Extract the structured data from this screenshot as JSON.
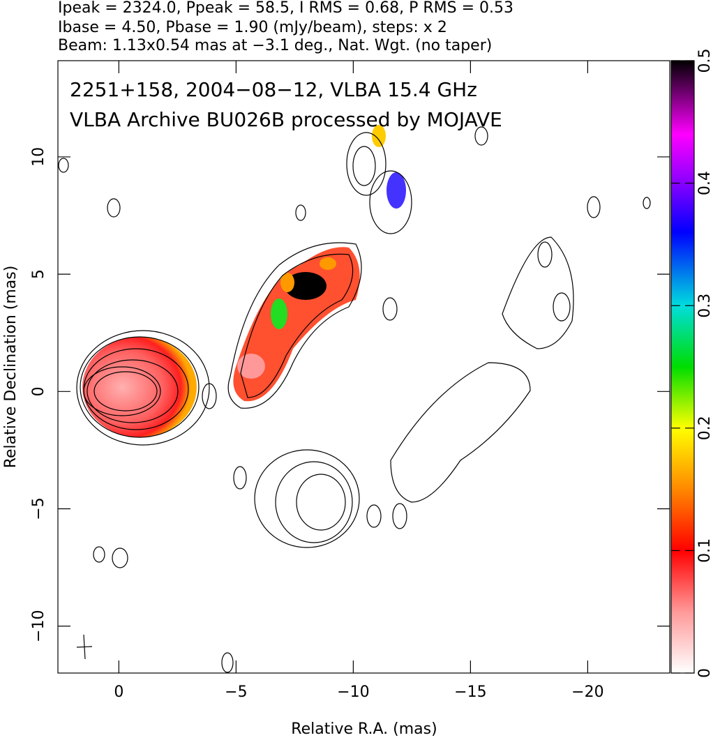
{
  "chart_data": {
    "type": "contour-image",
    "title_lines": [
      "Ipeak = 2324.0, Ppeak = 58.5, I RMS = 0.68, P RMS = 0.53",
      "Ibase = 4.50, Pbase = 1.90 (mJy/beam), steps: x 2",
      "Beam: 1.13x0.54 mas at −3.1 deg., Nat. Wgt. (no taper)"
    ],
    "annotations": [
      "2251+158, 2004−08−12, VLBA 15.4 GHz",
      "VLBA Archive BU026B processed by MOJAVE"
    ],
    "xlabel": "Relative R.A. (mas)",
    "ylabel": "Relative Declination (mas)",
    "xlim": [
      2.6,
      -23.5
    ],
    "xticks": [
      0,
      {
        "value": -5,
        "label": "−5"
      },
      {
        "value": -10,
        "label": "−10"
      },
      {
        "value": -15,
        "label": "−15"
      },
      {
        "value": -20,
        "label": "−20"
      }
    ],
    "ylim": [
      -12.0,
      14.1
    ],
    "yticks": [
      {
        "value": -10,
        "label": "−10"
      },
      {
        "value": -5,
        "label": "−5"
      },
      0,
      5,
      10
    ],
    "colorbar": {
      "lim": [
        0,
        0.5
      ],
      "ticks": [
        0,
        0.1,
        0.2,
        0.3,
        0.4,
        0.5
      ]
    }
  }
}
